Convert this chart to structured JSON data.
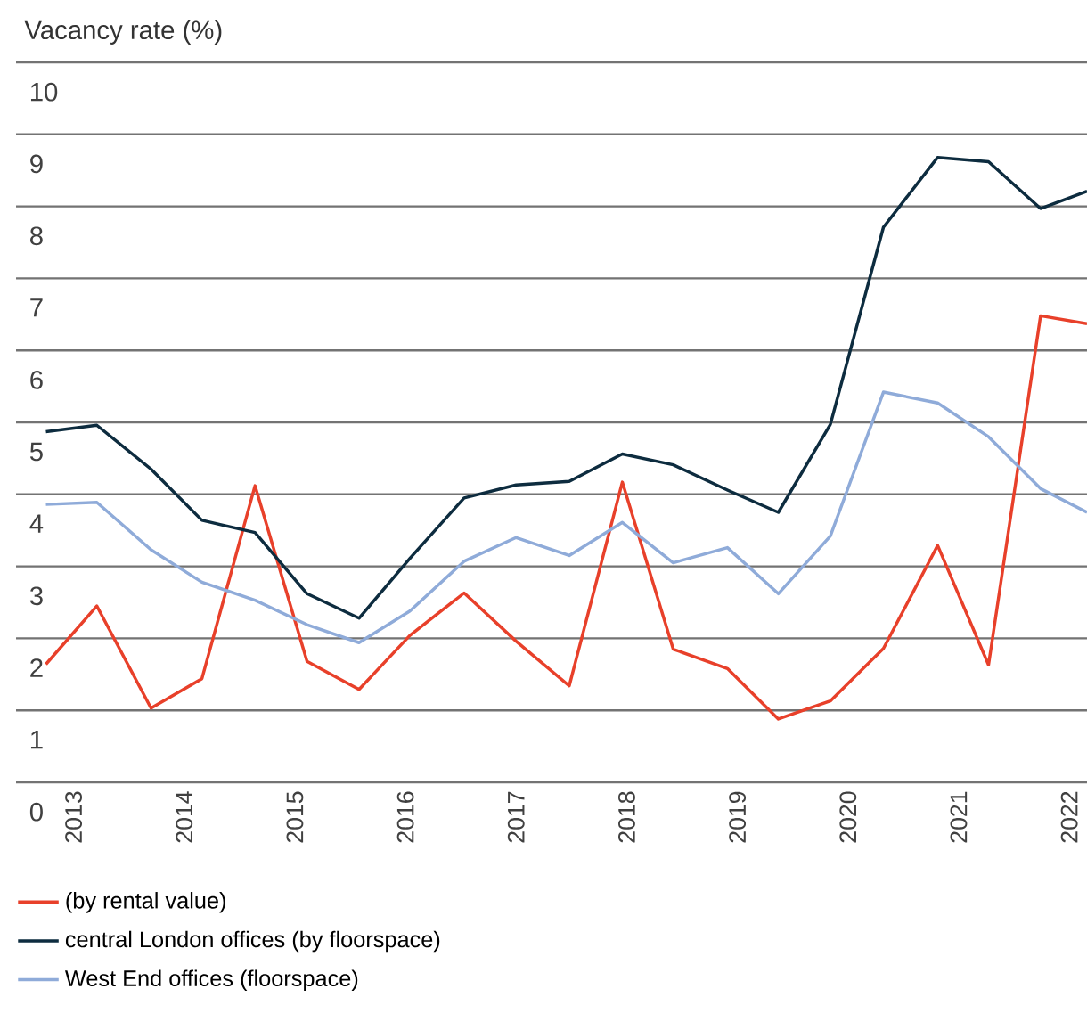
{
  "chart_data": {
    "type": "line",
    "ylabel": "Vacancy rate (%)",
    "x": [
      2012.75,
      2013.21,
      2013.7,
      2014.16,
      2014.64,
      2015.11,
      2015.58,
      2016.04,
      2016.53,
      2017.0,
      2017.48,
      2017.96,
      2018.42,
      2018.91,
      2019.37,
      2019.84,
      2020.32,
      2020.81,
      2021.27,
      2021.74,
      2022.16
    ],
    "series": [
      {
        "name": "(by rental value)",
        "color": "#e8402a",
        "values": [
          1.64,
          2.45,
          1.03,
          1.44,
          4.12,
          1.68,
          1.29,
          2.04,
          2.63,
          1.96,
          1.34,
          4.17,
          1.85,
          1.58,
          0.88,
          1.13,
          1.86,
          3.29,
          1.63,
          6.48,
          6.37
        ]
      },
      {
        "name": "central London offices (by floorspace)",
        "color": "#0d2c3f",
        "values": [
          4.87,
          4.96,
          4.35,
          3.64,
          3.47,
          2.62,
          2.28,
          3.11,
          3.95,
          4.13,
          4.18,
          4.56,
          4.41,
          4.06,
          3.75,
          4.97,
          7.71,
          8.68,
          8.62,
          7.97,
          8.21
        ]
      },
      {
        "name": "West End offices (floorspace)",
        "color": "#8fabd9",
        "values": [
          3.86,
          3.89,
          3.23,
          2.78,
          2.53,
          2.19,
          1.94,
          2.38,
          3.07,
          3.4,
          3.15,
          3.61,
          3.05,
          3.26,
          2.62,
          3.42,
          5.42,
          5.27,
          4.8,
          4.08,
          3.75
        ]
      }
    ],
    "xlim": [
      2012.48,
      2022.16
    ],
    "xticks": [
      2013,
      2014,
      2015,
      2016,
      2017,
      2018,
      2019,
      2020,
      2021,
      2022
    ],
    "ylim": [
      0,
      10
    ],
    "yticks": [
      0,
      1,
      2,
      3,
      4,
      5,
      6,
      7,
      8,
      9,
      10
    ],
    "grid": "y",
    "legend": "bottom",
    "marker": "none",
    "line_style": "solid"
  }
}
